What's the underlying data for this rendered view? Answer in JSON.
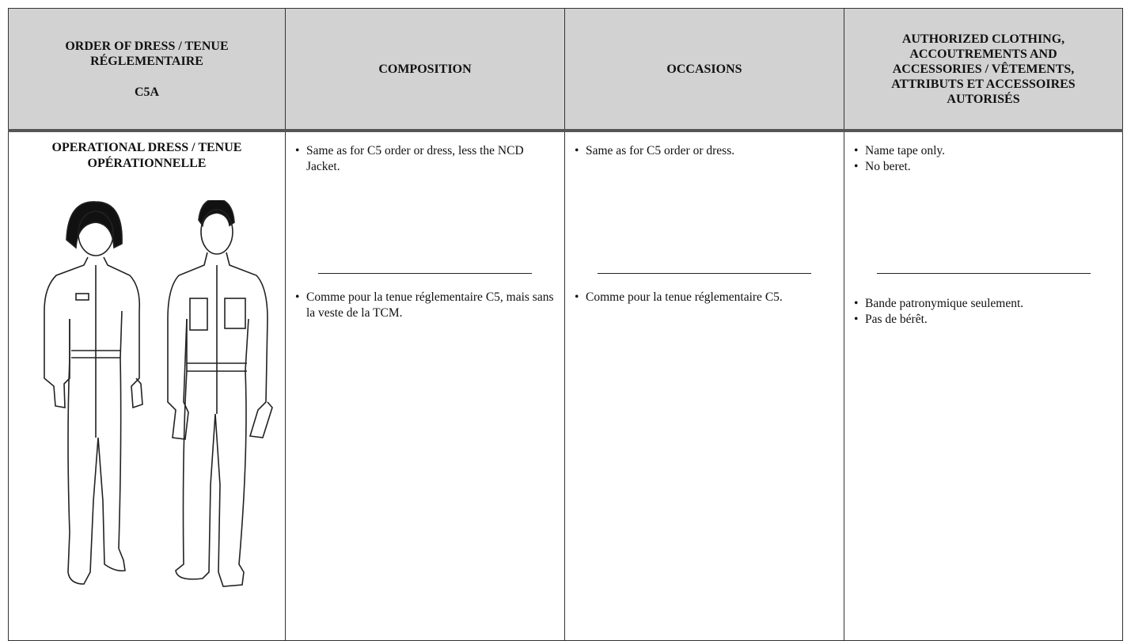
{
  "table": {
    "header": {
      "order_label": "ORDER OF DRESS / TENUE RÉGLEMENTAIRE",
      "order_code": "C5A",
      "columns": [
        "COMPOSITION",
        "OCCASIONS",
        "AUTHORIZED CLOTHING, ACCOUTREMENTS AND ACCESSORIES / VÊTEMENTS, ATTRIBUTS ET ACCESSOIRES AUTORISÉS"
      ]
    },
    "rows": [
      {
        "title": "OPERATIONAL DRESS / TENUE OPÉRATIONNELLE",
        "cells": [
          {
            "english": [
              "Same as for C5 order or dress, less the NCD Jacket."
            ],
            "french": [
              "Comme pour la tenue réglementaire C5, mais sans la veste de la TCM."
            ]
          },
          {
            "english": [
              "Same as for C5 order or dress."
            ],
            "french": [
              "Comme pour la tenue réglementaire C5."
            ]
          },
          {
            "english": [
              "Name tape only.",
              "No beret."
            ],
            "french": [
              "Bande patronymique seulement.",
              "Pas de bérêt."
            ]
          }
        ]
      }
    ]
  }
}
